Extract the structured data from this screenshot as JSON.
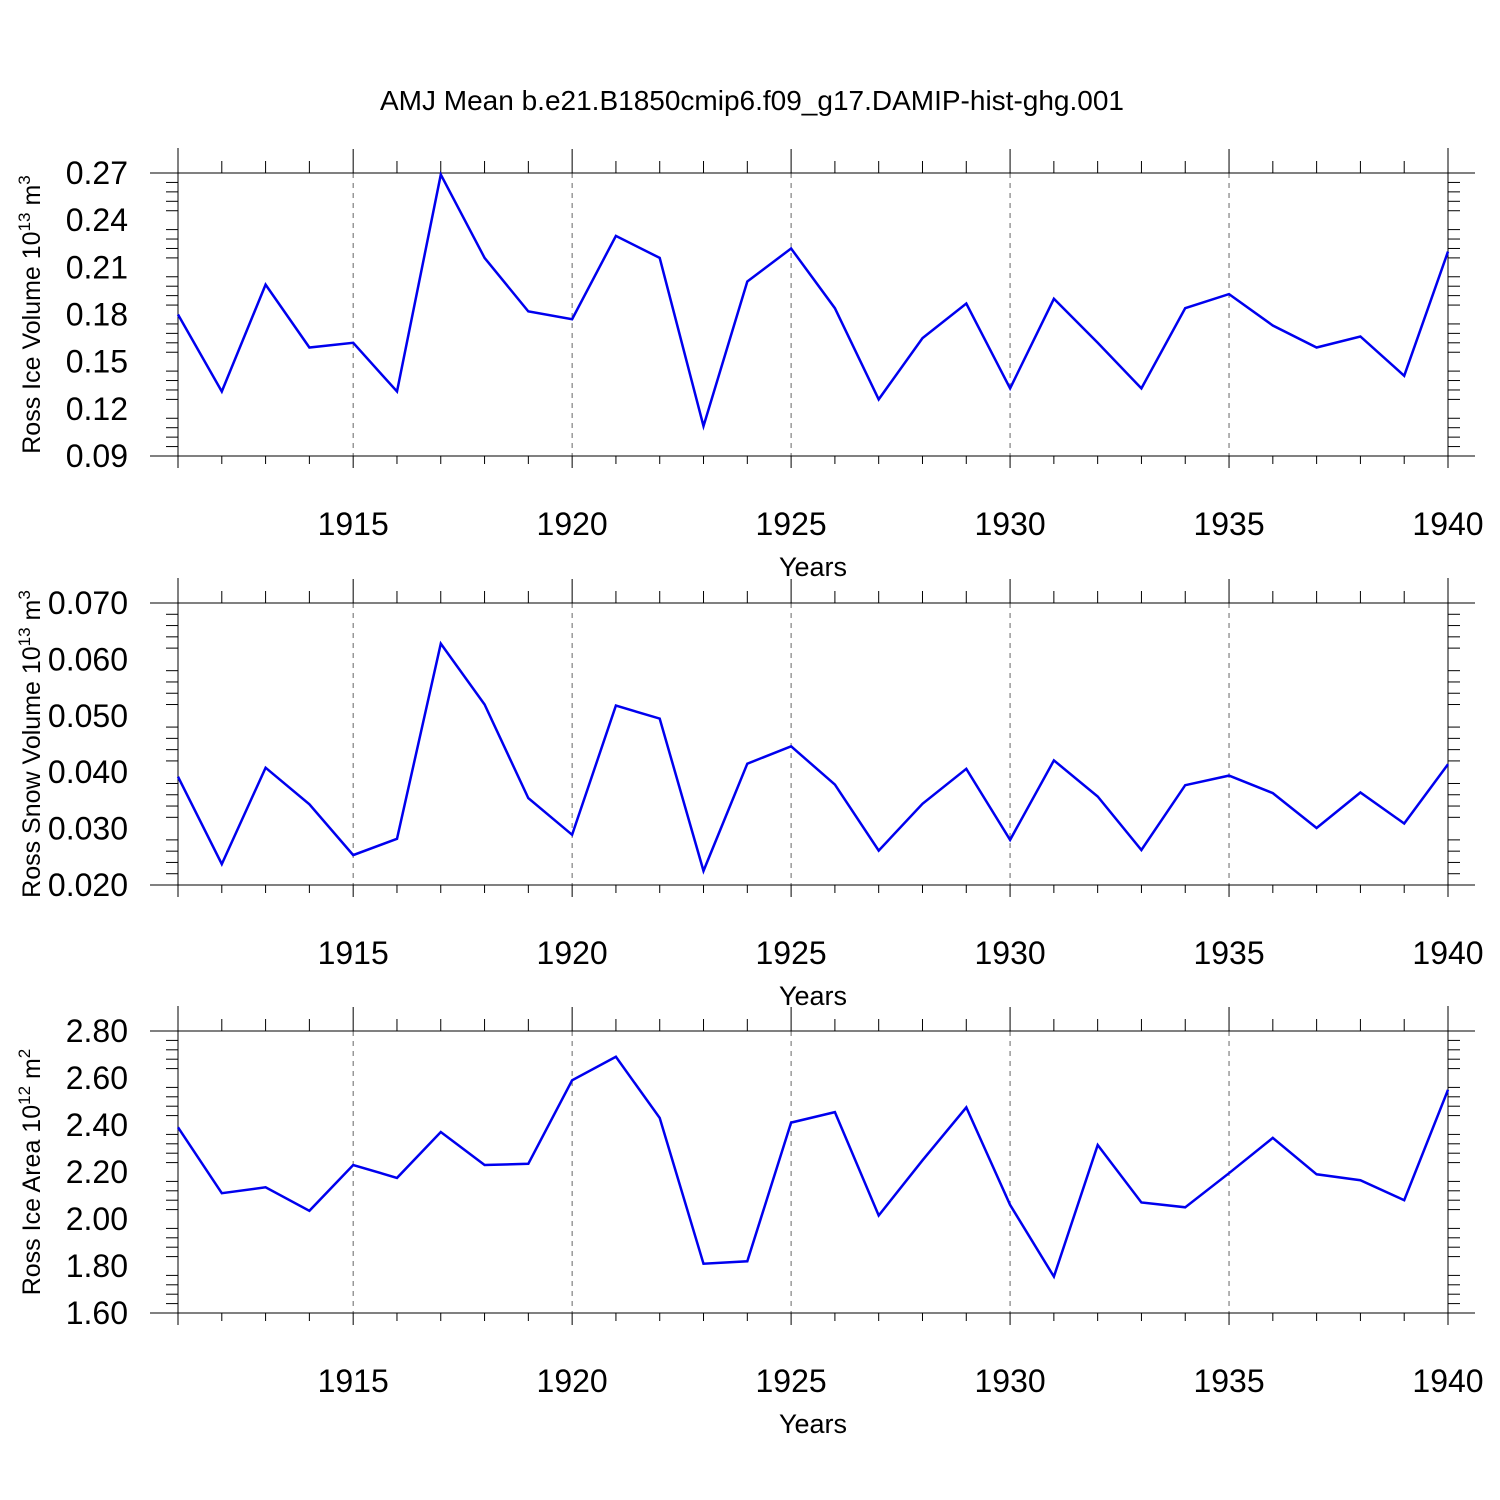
{
  "title": "AMJ Mean b.e21.B1850cmip6.f09_g17.DAMIP-hist-ghg.001",
  "chart_data": [
    {
      "type": "line",
      "ylabel": "Ross Ice Volume 10^13 m^3",
      "ylabel_parts": {
        "base": "Ross Ice Volume 10",
        "exp": "13",
        "unit": " m",
        "unit_exp": "3"
      },
      "xlabel": "Years",
      "xlim": [
        1911,
        1940
      ],
      "ylim": [
        0.09,
        0.27
      ],
      "yticks": [
        0.09,
        0.12,
        0.15,
        0.18,
        0.21,
        0.24,
        0.27
      ],
      "ytick_labels": [
        "0.09",
        "0.12",
        "0.15",
        "0.18",
        "0.21",
        "0.24",
        "0.27"
      ],
      "xticks": [
        1915,
        1920,
        1925,
        1930,
        1935,
        1940
      ],
      "xtick_labels": [
        "1915",
        "1920",
        "1925",
        "1930",
        "1935",
        "1940"
      ],
      "line_color": "#0000ee",
      "series": [
        {
          "x": [
            1911,
            1912,
            1913,
            1914,
            1915,
            1916,
            1917,
            1918,
            1919,
            1920,
            1921,
            1922,
            1923,
            1924,
            1925,
            1926,
            1927,
            1928,
            1929,
            1930,
            1931,
            1932,
            1933,
            1934,
            1935,
            1936,
            1937,
            1938,
            1939,
            1940
          ],
          "values": [
            0.18,
            0.131,
            0.199,
            0.159,
            0.162,
            0.131,
            0.269,
            0.216,
            0.182,
            0.177,
            0.23,
            0.216,
            0.109,
            0.201,
            0.222,
            0.184,
            0.126,
            0.165,
            0.187,
            0.133,
            0.19,
            0.162,
            0.133,
            0.184,
            0.193,
            0.173,
            0.159,
            0.166,
            0.141,
            0.22
          ]
        }
      ]
    },
    {
      "type": "line",
      "ylabel": "Ross Snow Volume 10^13 m^3",
      "ylabel_parts": {
        "base": "Ross Snow Volume 10",
        "exp": "13",
        "unit": " m",
        "unit_exp": "3"
      },
      "xlabel": "Years",
      "xlim": [
        1911,
        1940
      ],
      "ylim": [
        0.02,
        0.07
      ],
      "yticks": [
        0.02,
        0.03,
        0.04,
        0.05,
        0.06,
        0.07
      ],
      "ytick_labels": [
        "0.020",
        "0.030",
        "0.040",
        "0.050",
        "0.060",
        "0.070"
      ],
      "xticks": [
        1915,
        1920,
        1925,
        1930,
        1935,
        1940
      ],
      "xtick_labels": [
        "1915",
        "1920",
        "1925",
        "1930",
        "1935",
        "1940"
      ],
      "line_color": "#0000ee",
      "series": [
        {
          "x": [
            1911,
            1912,
            1913,
            1914,
            1915,
            1916,
            1917,
            1918,
            1919,
            1920,
            1921,
            1922,
            1923,
            1924,
            1925,
            1926,
            1927,
            1928,
            1929,
            1930,
            1931,
            1932,
            1933,
            1934,
            1935,
            1936,
            1937,
            1938,
            1939,
            1940
          ],
          "values": [
            0.0392,
            0.0237,
            0.0408,
            0.0343,
            0.0253,
            0.0282,
            0.0628,
            0.052,
            0.0354,
            0.0289,
            0.0518,
            0.0495,
            0.0225,
            0.0415,
            0.0446,
            0.0378,
            0.0261,
            0.0344,
            0.0406,
            0.028,
            0.0421,
            0.0357,
            0.0262,
            0.0377,
            0.0394,
            0.0363,
            0.0301,
            0.0364,
            0.0309,
            0.0414
          ]
        }
      ]
    },
    {
      "type": "line",
      "ylabel": "Ross Ice Area 10^12 m^2",
      "ylabel_parts": {
        "base": "Ross Ice Area 10",
        "exp": "12",
        "unit": " m",
        "unit_exp": "2"
      },
      "xlabel": "Years",
      "xlim": [
        1911,
        1940
      ],
      "ylim": [
        1.6,
        2.8
      ],
      "yticks": [
        1.6,
        1.8,
        2.0,
        2.2,
        2.4,
        2.6,
        2.8
      ],
      "ytick_labels": [
        "1.60",
        "1.80",
        "2.00",
        "2.20",
        "2.40",
        "2.60",
        "2.80"
      ],
      "xticks": [
        1915,
        1920,
        1925,
        1930,
        1935,
        1940
      ],
      "xtick_labels": [
        "1915",
        "1920",
        "1925",
        "1930",
        "1935",
        "1940"
      ],
      "line_color": "#0000ee",
      "series": [
        {
          "x": [
            1911,
            1912,
            1913,
            1914,
            1915,
            1916,
            1917,
            1918,
            1919,
            1920,
            1921,
            1922,
            1923,
            1924,
            1925,
            1926,
            1927,
            1928,
            1929,
            1930,
            1931,
            1932,
            1933,
            1934,
            1935,
            1936,
            1937,
            1938,
            1939,
            1940
          ],
          "values": [
            2.39,
            2.11,
            2.135,
            2.035,
            2.23,
            2.175,
            2.37,
            2.23,
            2.235,
            2.59,
            2.69,
            2.43,
            1.81,
            1.82,
            2.41,
            2.455,
            2.015,
            2.25,
            2.475,
            2.06,
            1.755,
            2.315,
            2.07,
            2.05,
            2.195,
            2.345,
            2.19,
            2.165,
            2.08,
            2.55
          ]
        }
      ]
    }
  ]
}
